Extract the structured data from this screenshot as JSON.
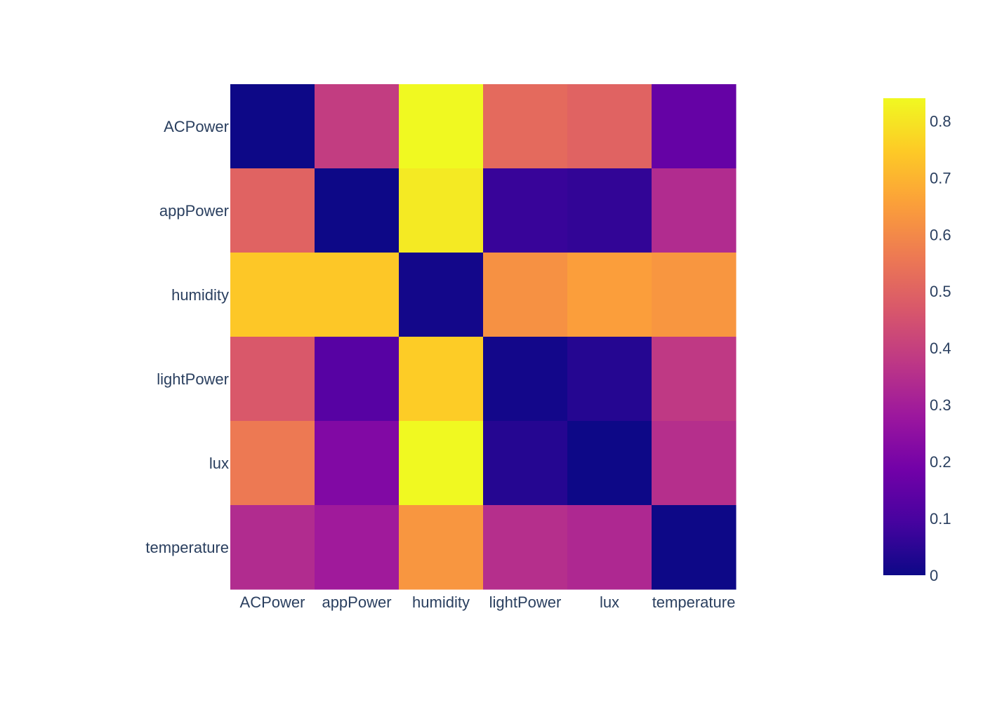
{
  "chart_data": {
    "type": "heatmap",
    "title": "",
    "xlabel": "",
    "ylabel": "",
    "x_categories": [
      "ACPower",
      "appPower",
      "humidity",
      "lightPower",
      "lux",
      "temperature"
    ],
    "y_categories": [
      "ACPower",
      "appPower",
      "humidity",
      "lightPower",
      "lux",
      "temperature"
    ],
    "z": [
      [
        0.0,
        0.39,
        0.84,
        0.52,
        0.5,
        0.16
      ],
      [
        0.5,
        0.0,
        0.81,
        0.07,
        0.06,
        0.34
      ],
      [
        0.74,
        0.74,
        0.01,
        0.62,
        0.65,
        0.63
      ],
      [
        0.47,
        0.13,
        0.75,
        0.01,
        0.04,
        0.38
      ],
      [
        0.56,
        0.22,
        0.84,
        0.04,
        0.0,
        0.35
      ],
      [
        0.34,
        0.29,
        0.63,
        0.35,
        0.33,
        0.0
      ]
    ],
    "zmin": 0,
    "zmax": 0.84,
    "colorscale": "plasma",
    "colorbar": {
      "tick_values": [
        0,
        0.1,
        0.2,
        0.3,
        0.4,
        0.5,
        0.6,
        0.7,
        0.8
      ],
      "tick_labels": [
        "0",
        "0.1",
        "0.2",
        "0.3",
        "0.4",
        "0.5",
        "0.6",
        "0.7",
        "0.8"
      ]
    },
    "grid": false,
    "legend": "none"
  },
  "colors": {
    "text": "#2a3f5f",
    "background": "#ffffff",
    "plasma": [
      "#0d0887",
      "#46039f",
      "#7201a8",
      "#9c179e",
      "#bd3786",
      "#d8576b",
      "#ed7953",
      "#fb9f3a",
      "#fdca26",
      "#f0f921"
    ]
  }
}
